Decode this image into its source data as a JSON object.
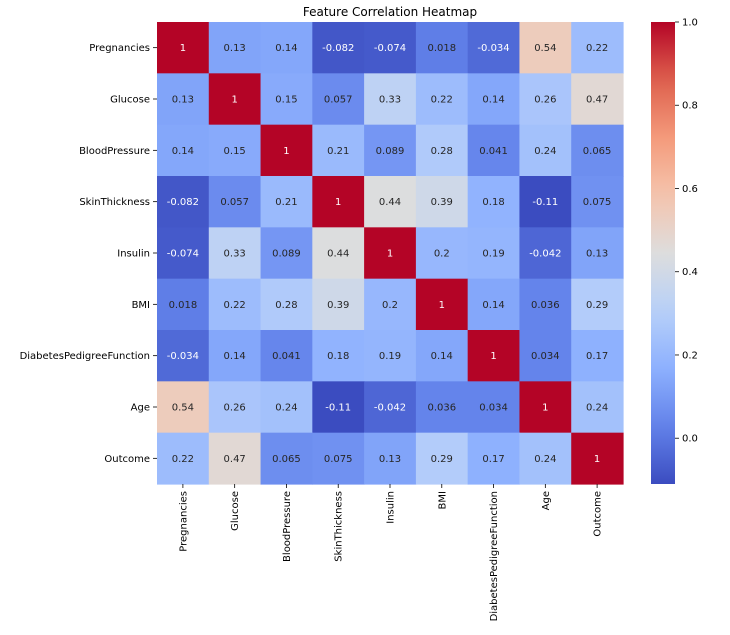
{
  "chart_data": {
    "type": "heatmap",
    "title": "Feature Correlation Heatmap",
    "xlabel": "",
    "ylabel": "",
    "rows": [
      "Pregnancies",
      "Glucose",
      "BloodPressure",
      "SkinThickness",
      "Insulin",
      "BMI",
      "DiabetesPedigreeFunction",
      "Age",
      "Outcome"
    ],
    "columns": [
      "Pregnancies",
      "Glucose",
      "BloodPressure",
      "SkinThickness",
      "Insulin",
      "BMI",
      "DiabetesPedigreeFunction",
      "Age",
      "Outcome"
    ],
    "values": [
      [
        1,
        0.13,
        0.14,
        -0.082,
        -0.074,
        0.018,
        -0.034,
        0.54,
        0.22
      ],
      [
        0.13,
        1,
        0.15,
        0.057,
        0.33,
        0.22,
        0.14,
        0.26,
        0.47
      ],
      [
        0.14,
        0.15,
        1,
        0.21,
        0.089,
        0.28,
        0.041,
        0.24,
        0.065
      ],
      [
        -0.082,
        0.057,
        0.21,
        1,
        0.44,
        0.39,
        0.18,
        -0.11,
        0.075
      ],
      [
        -0.074,
        0.33,
        0.089,
        0.44,
        1,
        0.2,
        0.19,
        -0.042,
        0.13
      ],
      [
        0.018,
        0.22,
        0.28,
        0.39,
        0.2,
        1,
        0.14,
        0.036,
        0.29
      ],
      [
        -0.034,
        0.14,
        0.041,
        0.18,
        0.19,
        0.14,
        1,
        0.034,
        0.17
      ],
      [
        0.54,
        0.26,
        0.24,
        -0.11,
        -0.042,
        0.036,
        0.034,
        1,
        0.24
      ],
      [
        0.22,
        0.47,
        0.065,
        0.075,
        0.13,
        0.29,
        0.17,
        0.24,
        1
      ]
    ],
    "labels": [
      [
        "1",
        "0.13",
        "0.14",
        "-0.082",
        "-0.074",
        "0.018",
        "-0.034",
        "0.54",
        "0.22"
      ],
      [
        "0.13",
        "1",
        "0.15",
        "0.057",
        "0.33",
        "0.22",
        "0.14",
        "0.26",
        "0.47"
      ],
      [
        "0.14",
        "0.15",
        "1",
        "0.21",
        "0.089",
        "0.28",
        "0.041",
        "0.24",
        "0.065"
      ],
      [
        "-0.082",
        "0.057",
        "0.21",
        "1",
        "0.44",
        "0.39",
        "0.18",
        "-0.11",
        "0.075"
      ],
      [
        "-0.074",
        "0.33",
        "0.089",
        "0.44",
        "1",
        "0.2",
        "0.19",
        "-0.042",
        "0.13"
      ],
      [
        "0.018",
        "0.22",
        "0.28",
        "0.39",
        "0.2",
        "1",
        "0.14",
        "0.036",
        "0.29"
      ],
      [
        "-0.034",
        "0.14",
        "0.041",
        "0.18",
        "0.19",
        "0.14",
        "1",
        "0.034",
        "0.17"
      ],
      [
        "0.54",
        "0.26",
        "0.24",
        "-0.11",
        "-0.042",
        "0.036",
        "0.034",
        "1",
        "0.24"
      ],
      [
        "0.22",
        "0.47",
        "0.065",
        "0.075",
        "0.13",
        "0.29",
        "0.17",
        "0.24",
        "1"
      ]
    ],
    "colorbar": {
      "colormap": "coolwarm",
      "range": [
        -0.11,
        1.0
      ],
      "ticks": [
        0.0,
        0.2,
        0.4,
        0.6,
        0.8,
        1.0
      ],
      "tick_labels": [
        "0.0",
        "0.2",
        "0.4",
        "0.6",
        "0.8",
        "1.0"
      ]
    }
  }
}
